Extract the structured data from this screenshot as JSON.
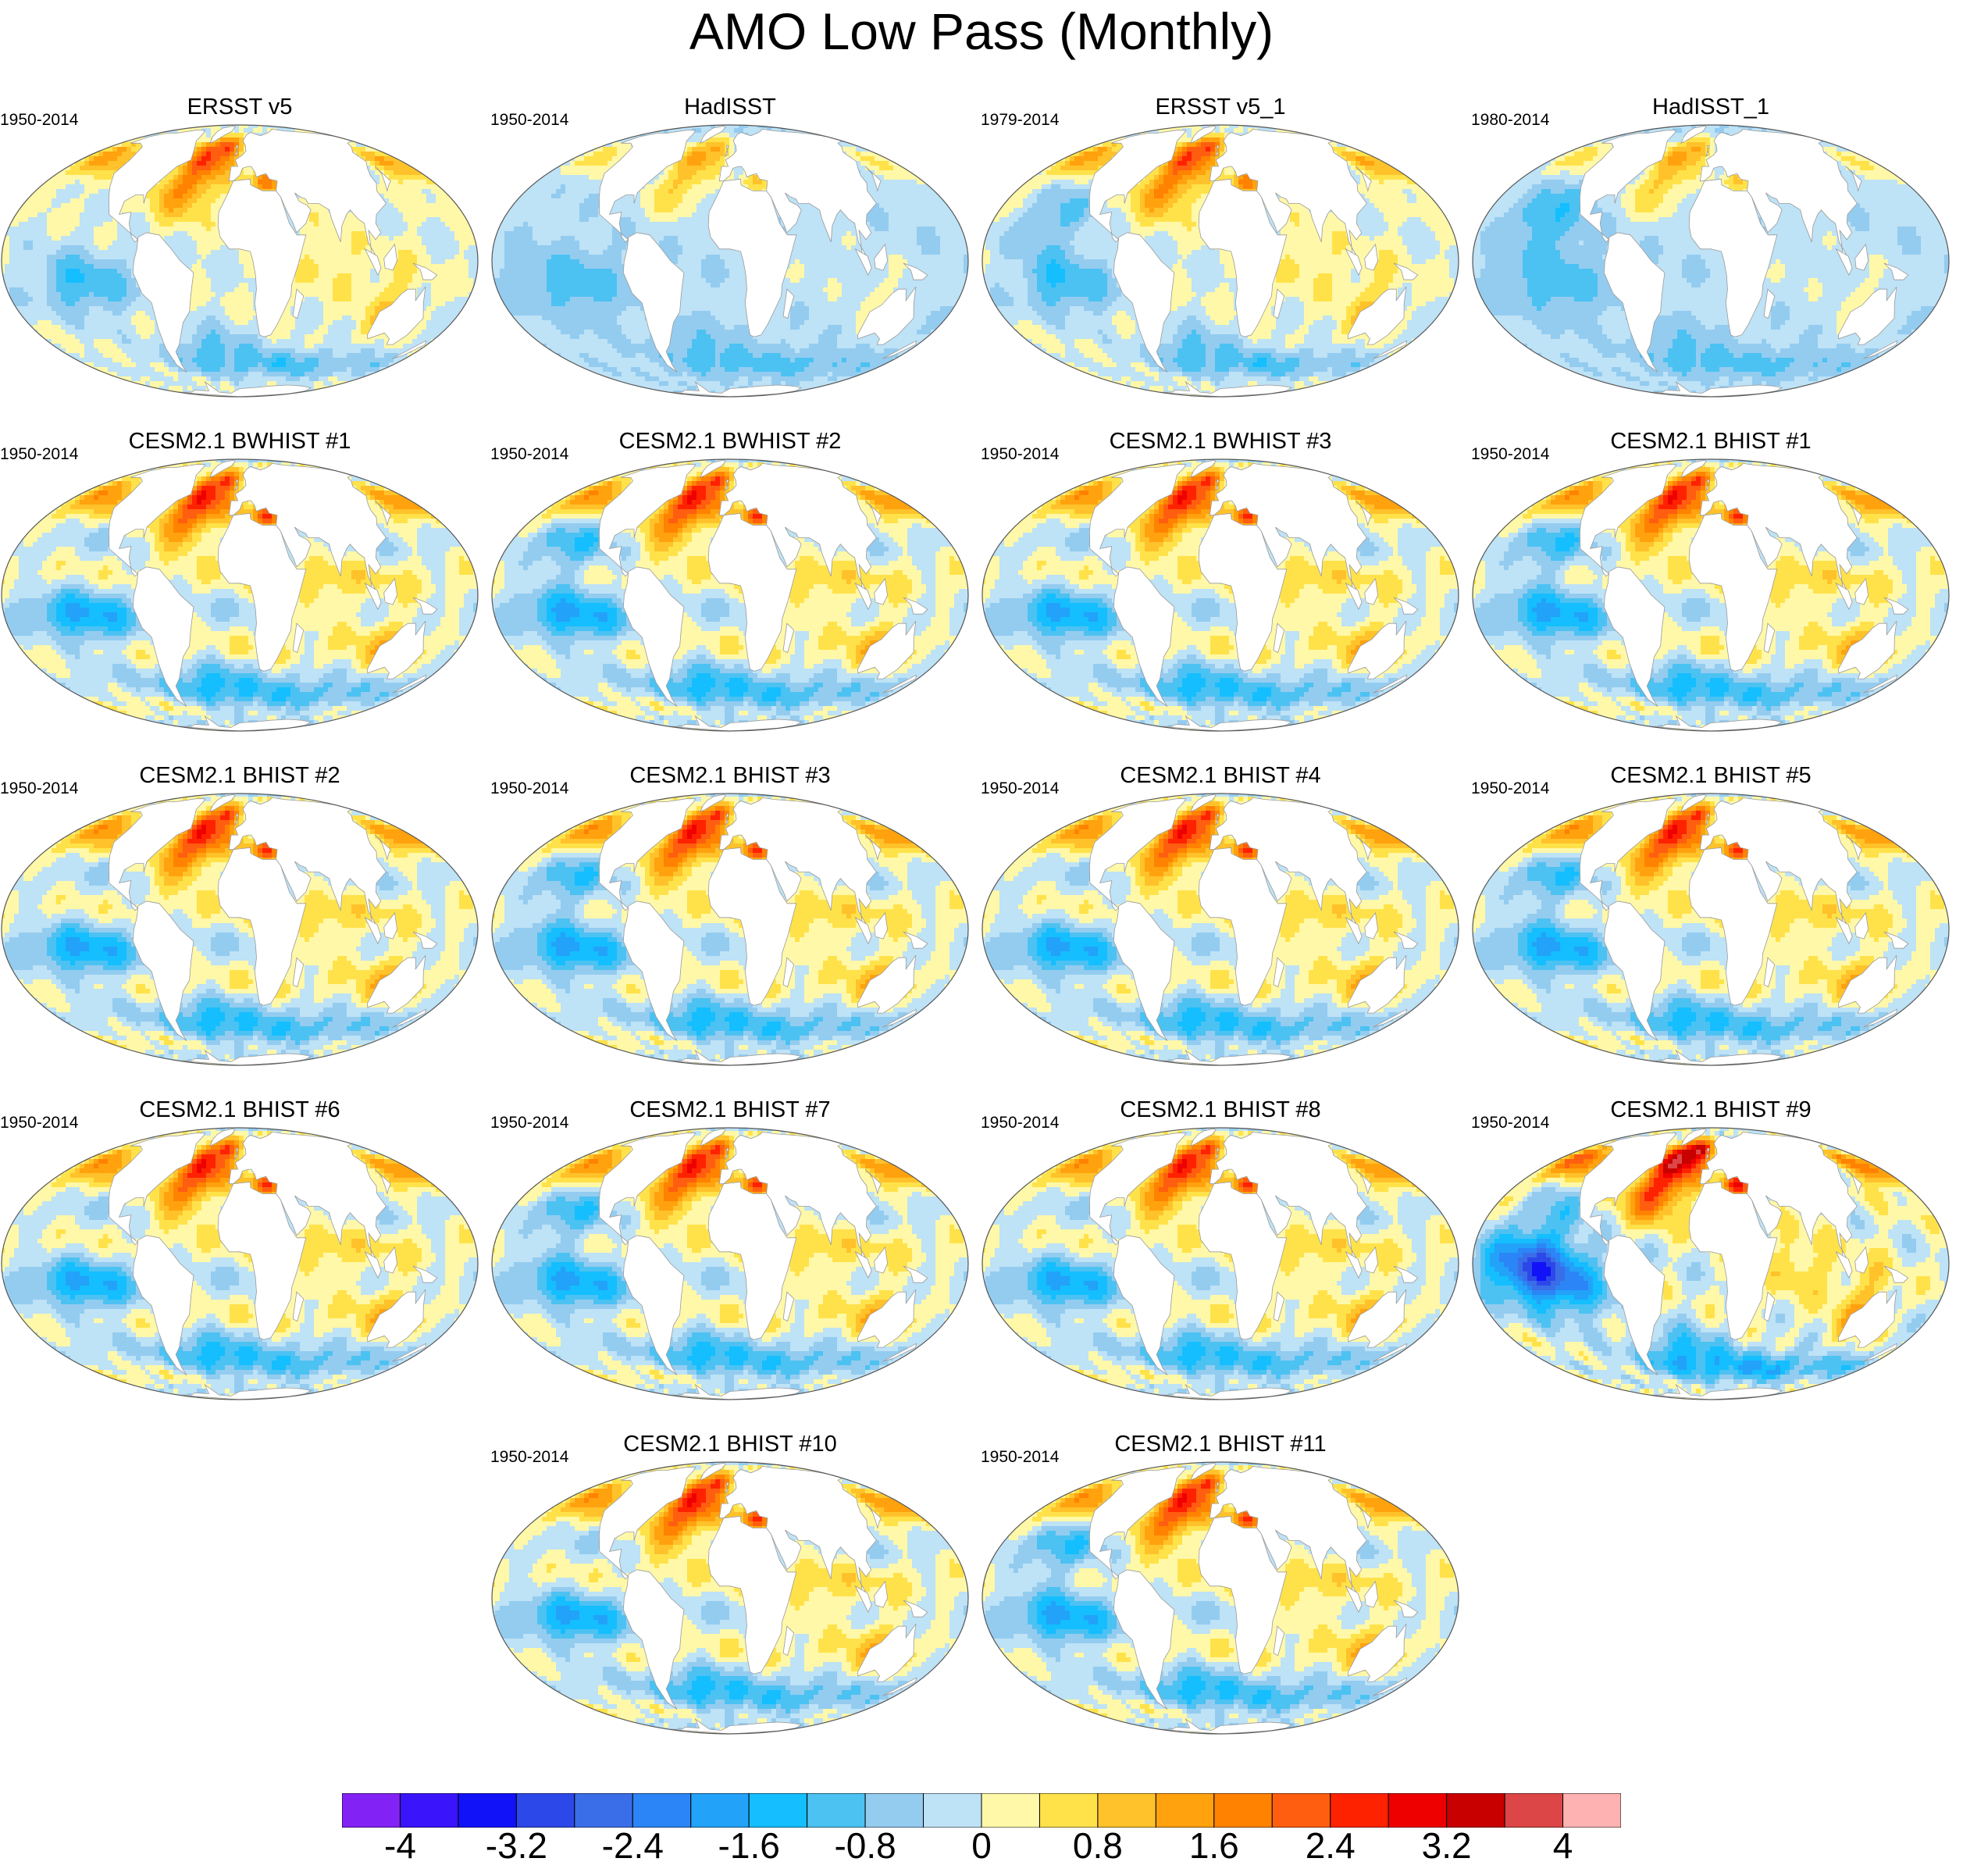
{
  "title": "AMO Low Pass (Monthly)",
  "panels": [
    {
      "title": "ERSST v5",
      "period": "1950-2014",
      "pattern": "warm_atl",
      "neg": false
    },
    {
      "title": "HadISST",
      "period": "1950-2014",
      "pattern": "cool",
      "neg": false
    },
    {
      "title": "ERSST v5_1",
      "period": "1979-2014",
      "pattern": "warm_atl",
      "neg": true
    },
    {
      "title": "HadISST_1",
      "period": "1980-2014",
      "pattern": "cool",
      "neg": true
    },
    {
      "title": "CESM2.1 BWHIST #1",
      "period": "1950-2014",
      "pattern": "model",
      "neg": false
    },
    {
      "title": "CESM2.1 BWHIST #2",
      "period": "1950-2014",
      "pattern": "model",
      "neg": true
    },
    {
      "title": "CESM2.1 BWHIST #3",
      "period": "1950-2014",
      "pattern": "model",
      "neg": false
    },
    {
      "title": "CESM2.1 BHIST #1",
      "period": "1950-2014",
      "pattern": "model",
      "neg": true
    },
    {
      "title": "CESM2.1 BHIST #2",
      "period": "1950-2014",
      "pattern": "model",
      "neg": false
    },
    {
      "title": "CESM2.1 BHIST #3",
      "period": "1950-2014",
      "pattern": "model",
      "neg": true
    },
    {
      "title": "CESM2.1 BHIST #4",
      "period": "1950-2014",
      "pattern": "model",
      "neg": false
    },
    {
      "title": "CESM2.1 BHIST #5",
      "period": "1950-2014",
      "pattern": "model",
      "neg": true
    },
    {
      "title": "CESM2.1 BHIST #6",
      "period": "1950-2014",
      "pattern": "model",
      "neg": false
    },
    {
      "title": "CESM2.1 BHIST #7",
      "period": "1950-2014",
      "pattern": "model",
      "neg": true
    },
    {
      "title": "CESM2.1 BHIST #8",
      "period": "1950-2014",
      "pattern": "model",
      "neg": false
    },
    {
      "title": "CESM2.1 BHIST #9",
      "period": "1950-2014",
      "pattern": "strong",
      "neg": true
    },
    {
      "title": "CESM2.1 BHIST #10",
      "period": "1950-2014",
      "pattern": "model",
      "neg": false
    },
    {
      "title": "CESM2.1 BHIST #11",
      "period": "1950-2014",
      "pattern": "model",
      "neg": true
    }
  ],
  "colorbar": {
    "colors": [
      "#8222f5",
      "#3a14fb",
      "#1212f8",
      "#2d48e8",
      "#3a6ee8",
      "#2b85f6",
      "#22a2f8",
      "#14beff",
      "#4cc2f2",
      "#94ccf0",
      "#bee2f6",
      "#fff8a8",
      "#ffe24a",
      "#ffc22a",
      "#ffa20e",
      "#ff8200",
      "#ff5e10",
      "#ff2200",
      "#ee0000",
      "#c80000",
      "#dc4646",
      "#ffb2b2"
    ],
    "labels": [
      {
        "text": "-4",
        "boundary": 1
      },
      {
        "text": "-3.2",
        "boundary": 3
      },
      {
        "text": "-2.4",
        "boundary": 5
      },
      {
        "text": "-1.6",
        "boundary": 7
      },
      {
        "text": "-0.8",
        "boundary": 9
      },
      {
        "text": "0",
        "boundary": 11
      },
      {
        "text": "0.8",
        "boundary": 13
      },
      {
        "text": "1.6",
        "boundary": 15
      },
      {
        "text": "2.4",
        "boundary": 17
      },
      {
        "text": "3.2",
        "boundary": 19
      },
      {
        "text": "4",
        "boundary": 21
      }
    ]
  }
}
